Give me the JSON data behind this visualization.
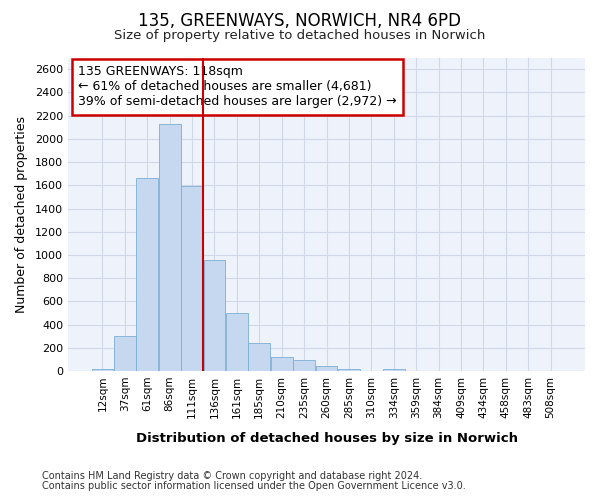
{
  "title1": "135, GREENWAYS, NORWICH, NR4 6PD",
  "title2": "Size of property relative to detached houses in Norwich",
  "xlabel": "Distribution of detached houses by size in Norwich",
  "ylabel": "Number of detached properties",
  "categories": [
    "12sqm",
    "37sqm",
    "61sqm",
    "86sqm",
    "111sqm",
    "136sqm",
    "161sqm",
    "185sqm",
    "210sqm",
    "235sqm",
    "260sqm",
    "285sqm",
    "310sqm",
    "334sqm",
    "359sqm",
    "384sqm",
    "409sqm",
    "434sqm",
    "458sqm",
    "483sqm",
    "508sqm"
  ],
  "values": [
    20,
    300,
    1660,
    2130,
    1590,
    960,
    500,
    245,
    125,
    100,
    40,
    15,
    5,
    20,
    5,
    5,
    5,
    2,
    2,
    2,
    2
  ],
  "bar_color": "#c5d8f0",
  "bar_edge_color": "#7bafd4",
  "annotation_text": "135 GREENWAYS: 118sqm\n← 61% of detached houses are smaller (4,681)\n39% of semi-detached houses are larger (2,972) →",
  "annotation_box_color": "#ffffff",
  "annotation_box_edge": "#cc0000",
  "vline_color": "#cc0000",
  "grid_color": "#d0d8e8",
  "background_color": "#ffffff",
  "plot_bg_color": "#eef3fb",
  "footer1": "Contains HM Land Registry data © Crown copyright and database right 2024.",
  "footer2": "Contains public sector information licensed under the Open Government Licence v3.0.",
  "ylim": [
    0,
    2700
  ],
  "yticks": [
    0,
    200,
    400,
    600,
    800,
    1000,
    1200,
    1400,
    1600,
    1800,
    2000,
    2200,
    2400,
    2600
  ],
  "vline_pos": 4.5
}
